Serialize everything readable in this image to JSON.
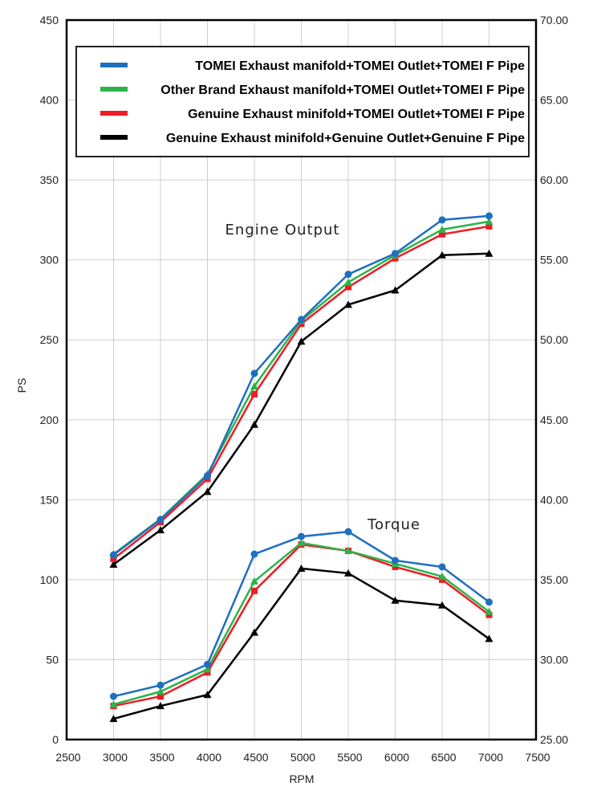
{
  "chart_data": {
    "type": "line",
    "xlabel": "RPM",
    "ylabel": "PS",
    "y2label": "",
    "xlim": [
      2500,
      7500
    ],
    "ylim": [
      0,
      450
    ],
    "y2lim": [
      25,
      70
    ],
    "xticks": [
      "2500",
      "3000",
      "3500",
      "4000",
      "4500",
      "5000",
      "5500",
      "6000",
      "6500",
      "7000",
      "7500"
    ],
    "yticks": [
      "0",
      "50",
      "100",
      "150",
      "200",
      "250",
      "300",
      "350",
      "400",
      "450"
    ],
    "y2ticks": [
      "25.00",
      "30.00",
      "35.00",
      "40.00",
      "45.00",
      "50.00",
      "55.00",
      "60.00",
      "65.00",
      "70.00"
    ],
    "grid": true,
    "legend_position": "top",
    "annotations": {
      "engine": "Engine Output",
      "torque": "Torque"
    },
    "x": [
      3000,
      3500,
      4000,
      4500,
      5000,
      5500,
      6000,
      6500,
      7000
    ],
    "series": [
      {
        "name": "TOMEI Exhaust manifold+TOMEI Outlet+TOMEI F Pipe",
        "color": "#1f6fc0",
        "marker": "circle",
        "power": [
          115.5,
          137.6,
          165,
          229,
          262.7,
          291,
          304,
          325,
          327.5
        ],
        "torque": [
          27.7,
          28.4,
          29.7,
          36.6,
          37.7,
          38.0,
          36.2,
          35.8,
          33.6
        ]
      },
      {
        "name": "Other Brand Exhaust manifold+TOMEI Outlet+TOMEI F Pipe",
        "color": "#2db34a",
        "marker": "triangle",
        "power": [
          116,
          138,
          166,
          221,
          262,
          286,
          303,
          319,
          324
        ],
        "torque": [
          27.2,
          28.0,
          29.4,
          34.9,
          37.3,
          36.8,
          36.0,
          35.2,
          33.0
        ]
      },
      {
        "name": "Genuine Exhaust minifold+TOMEI Outlet+TOMEI F Pipe",
        "color": "#ee1c24",
        "marker": "square",
        "power": [
          113,
          136,
          163,
          216,
          260,
          283,
          301,
          316,
          321
        ],
        "torque": [
          27.1,
          27.7,
          29.2,
          34.3,
          37.2,
          36.8,
          35.8,
          35.0,
          32.8
        ]
      },
      {
        "name": "Genuine Exhaust minifold+Genuine Outlet+Genuine F Pipe",
        "color": "#000000",
        "marker": "triangle",
        "power": [
          109.5,
          131,
          155,
          197,
          249,
          272,
          281,
          303,
          304
        ],
        "torque": [
          26.3,
          27.1,
          27.8,
          31.7,
          35.7,
          35.4,
          33.7,
          33.4,
          31.3
        ]
      }
    ]
  }
}
